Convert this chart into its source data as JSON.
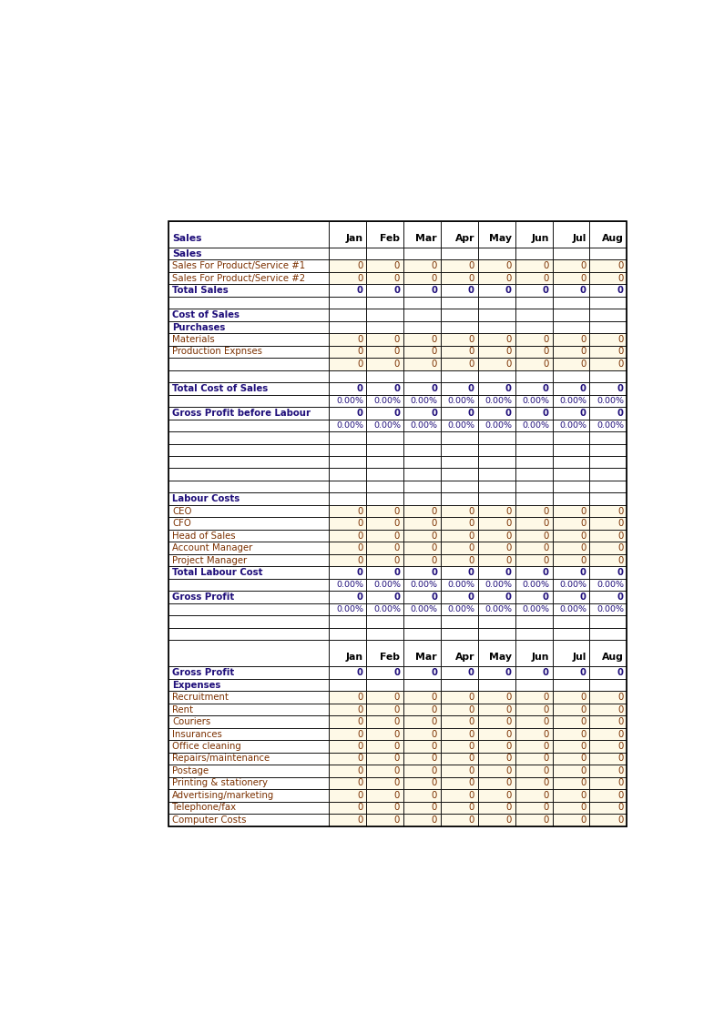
{
  "months": [
    "Jan",
    "Feb",
    "Mar",
    "Apr",
    "May",
    "Jun",
    "Jul",
    "Aug"
  ],
  "bg_color": "#ffffff",
  "border_color": "#000000",
  "bold_color": "#1f0e7a",
  "normal_color": "#7b3000",
  "input_bg": "#fef9e7",
  "white_bg": "#ffffff",
  "rows_section1": [
    {
      "label": "Sales",
      "type": "col_header",
      "has_data": false
    },
    {
      "label": "Sales For Product/Service #1",
      "type": "input",
      "has_data": true
    },
    {
      "label": "Sales For Product/Service #2",
      "type": "input",
      "has_data": true
    },
    {
      "label": "Total Sales",
      "type": "total",
      "has_data": true
    },
    {
      "label": "",
      "type": "blank",
      "has_data": false
    },
    {
      "label": "Cost of Sales",
      "type": "section",
      "has_data": false
    },
    {
      "label": "Purchases",
      "type": "section",
      "has_data": false
    },
    {
      "label": "Materials",
      "type": "input",
      "has_data": true
    },
    {
      "label": "Production Expnses",
      "type": "input",
      "has_data": true
    },
    {
      "label": "",
      "type": "input",
      "has_data": true
    },
    {
      "label": "",
      "type": "blank",
      "has_data": false
    },
    {
      "label": "Total Cost of Sales",
      "type": "total",
      "has_data": true
    },
    {
      "label": "",
      "type": "pct",
      "has_data": true
    },
    {
      "label": "Gross Profit before Labour",
      "type": "total",
      "has_data": true
    },
    {
      "label": "",
      "type": "pct",
      "has_data": true
    },
    {
      "label": "",
      "type": "blank",
      "has_data": false
    },
    {
      "label": "",
      "type": "blank",
      "has_data": false
    },
    {
      "label": "",
      "type": "blank",
      "has_data": false
    },
    {
      "label": "",
      "type": "blank",
      "has_data": false
    },
    {
      "label": "",
      "type": "blank",
      "has_data": false
    },
    {
      "label": "Labour Costs",
      "type": "section",
      "has_data": false
    },
    {
      "label": "CEO",
      "type": "input",
      "has_data": true
    },
    {
      "label": "CFO",
      "type": "input",
      "has_data": true
    },
    {
      "label": "Head of Sales",
      "type": "input",
      "has_data": true
    },
    {
      "label": "Account Manager",
      "type": "input",
      "has_data": true
    },
    {
      "label": "Project Manager",
      "type": "input",
      "has_data": true
    },
    {
      "label": "Total Labour Cost",
      "type": "total",
      "has_data": true
    },
    {
      "label": "",
      "type": "pct",
      "has_data": true
    },
    {
      "label": "Gross Profit",
      "type": "total",
      "has_data": true
    },
    {
      "label": "",
      "type": "pct",
      "has_data": true
    },
    {
      "label": "",
      "type": "blank",
      "has_data": false
    },
    {
      "label": "",
      "type": "blank",
      "has_data": false
    }
  ],
  "rows_section2": [
    {
      "label": "",
      "type": "col_header2",
      "has_data": true
    },
    {
      "label": "Gross Profit",
      "type": "total2",
      "has_data": true
    },
    {
      "label": "Expenses",
      "type": "section",
      "has_data": false
    },
    {
      "label": "Recruitment",
      "type": "input",
      "has_data": true
    },
    {
      "label": "Rent",
      "type": "input",
      "has_data": true
    },
    {
      "label": "Couriers",
      "type": "input",
      "has_data": true
    },
    {
      "label": "Insurances",
      "type": "input",
      "has_data": true
    },
    {
      "label": "Office cleaning",
      "type": "input",
      "has_data": true
    },
    {
      "label": "Repairs/maintenance",
      "type": "input",
      "has_data": true
    },
    {
      "label": "Postage",
      "type": "input",
      "has_data": true
    },
    {
      "label": "Printing & stationery",
      "type": "input",
      "has_data": true
    },
    {
      "label": "Advertising/marketing",
      "type": "input",
      "has_data": true
    },
    {
      "label": "Telephone/fax",
      "type": "input",
      "has_data": true
    },
    {
      "label": "Computer Costs",
      "type": "input",
      "has_data": true
    }
  ]
}
